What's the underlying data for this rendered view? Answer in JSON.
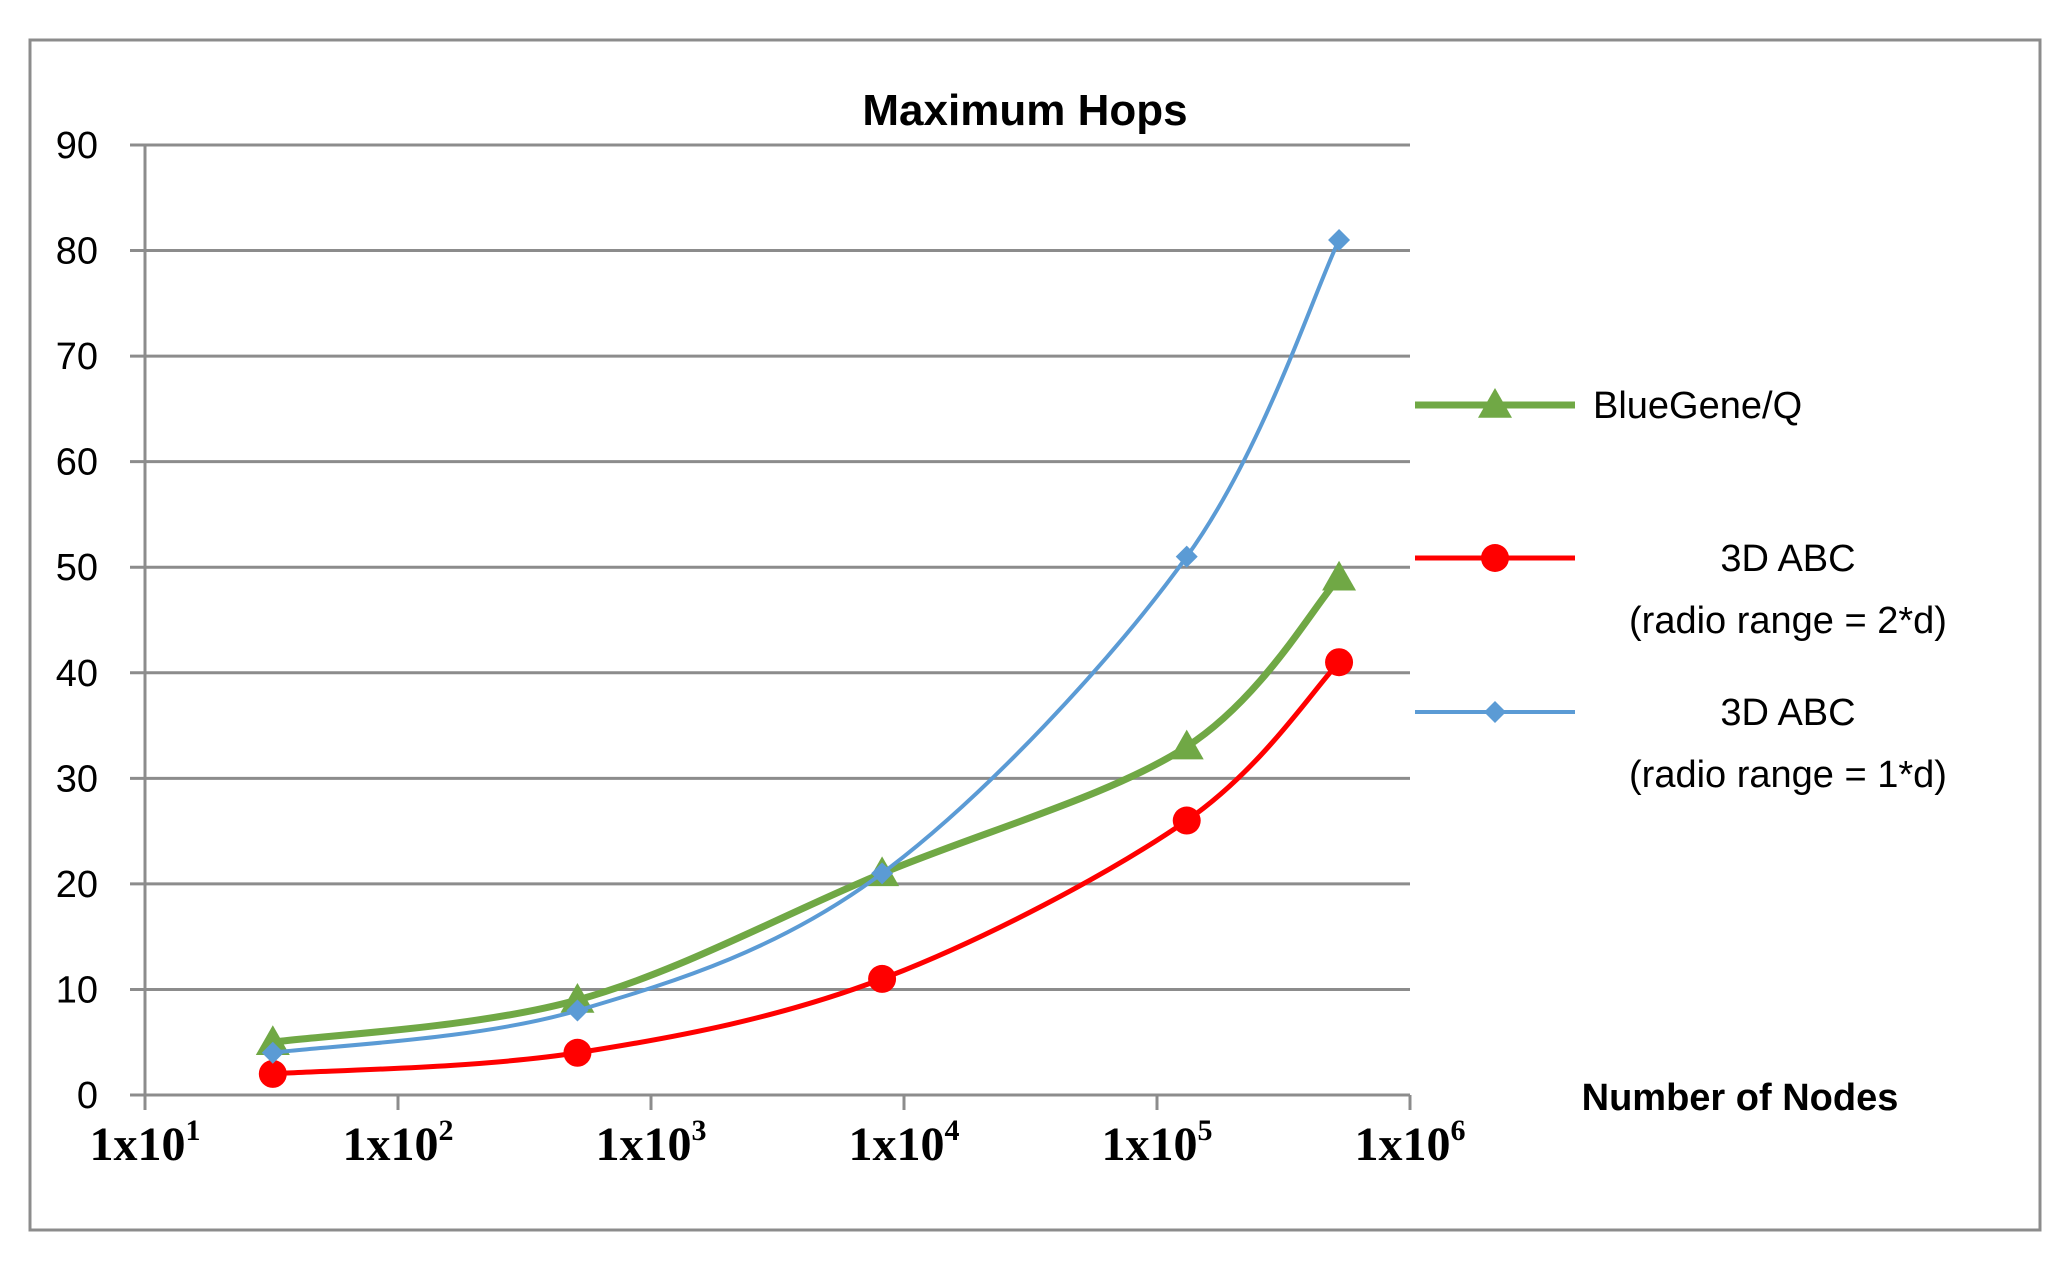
{
  "chart_data": {
    "type": "line",
    "title": "Maximum Hops",
    "xlabel": "Number of Nodes",
    "ylabel": "",
    "x_scale": "log10",
    "xlim": [
      10,
      1000000
    ],
    "ylim": [
      0,
      90
    ],
    "y_ticks": [
      0,
      10,
      20,
      30,
      40,
      50,
      60,
      70,
      80,
      90
    ],
    "x_ticks": [
      {
        "value": 10,
        "base": "1x10",
        "exp": "1"
      },
      {
        "value": 100,
        "base": "1x10",
        "exp": "2"
      },
      {
        "value": 1000,
        "base": "1x10",
        "exp": "3"
      },
      {
        "value": 10000,
        "base": "1x10",
        "exp": "4"
      },
      {
        "value": 100000,
        "base": "1x10",
        "exp": "5"
      },
      {
        "value": 1000000,
        "base": "1x10",
        "exp": "6"
      }
    ],
    "grid": true,
    "legend_position": "right",
    "x": [
      32,
      512,
      8192,
      131072,
      524288
    ],
    "series": [
      {
        "name": "BlueGene/Q",
        "name_lines": [
          "BlueGene/Q"
        ],
        "color": "#70a845",
        "marker": "triangle",
        "values": [
          5,
          9,
          21,
          33,
          49
        ]
      },
      {
        "name": "3D ABC (radio range = 2*d)",
        "name_lines": [
          "3D ABC",
          "(radio range = 2*d)"
        ],
        "color": "#ff0000",
        "marker": "circle",
        "values": [
          2,
          4,
          11,
          26,
          41
        ]
      },
      {
        "name": "3D ABC (radio range = 1*d)",
        "name_lines": [
          "3D ABC",
          "(radio range = 1*d)"
        ],
        "color": "#5b9bd5",
        "marker": "diamond",
        "values": [
          4,
          8,
          21,
          51,
          81
        ]
      }
    ]
  }
}
